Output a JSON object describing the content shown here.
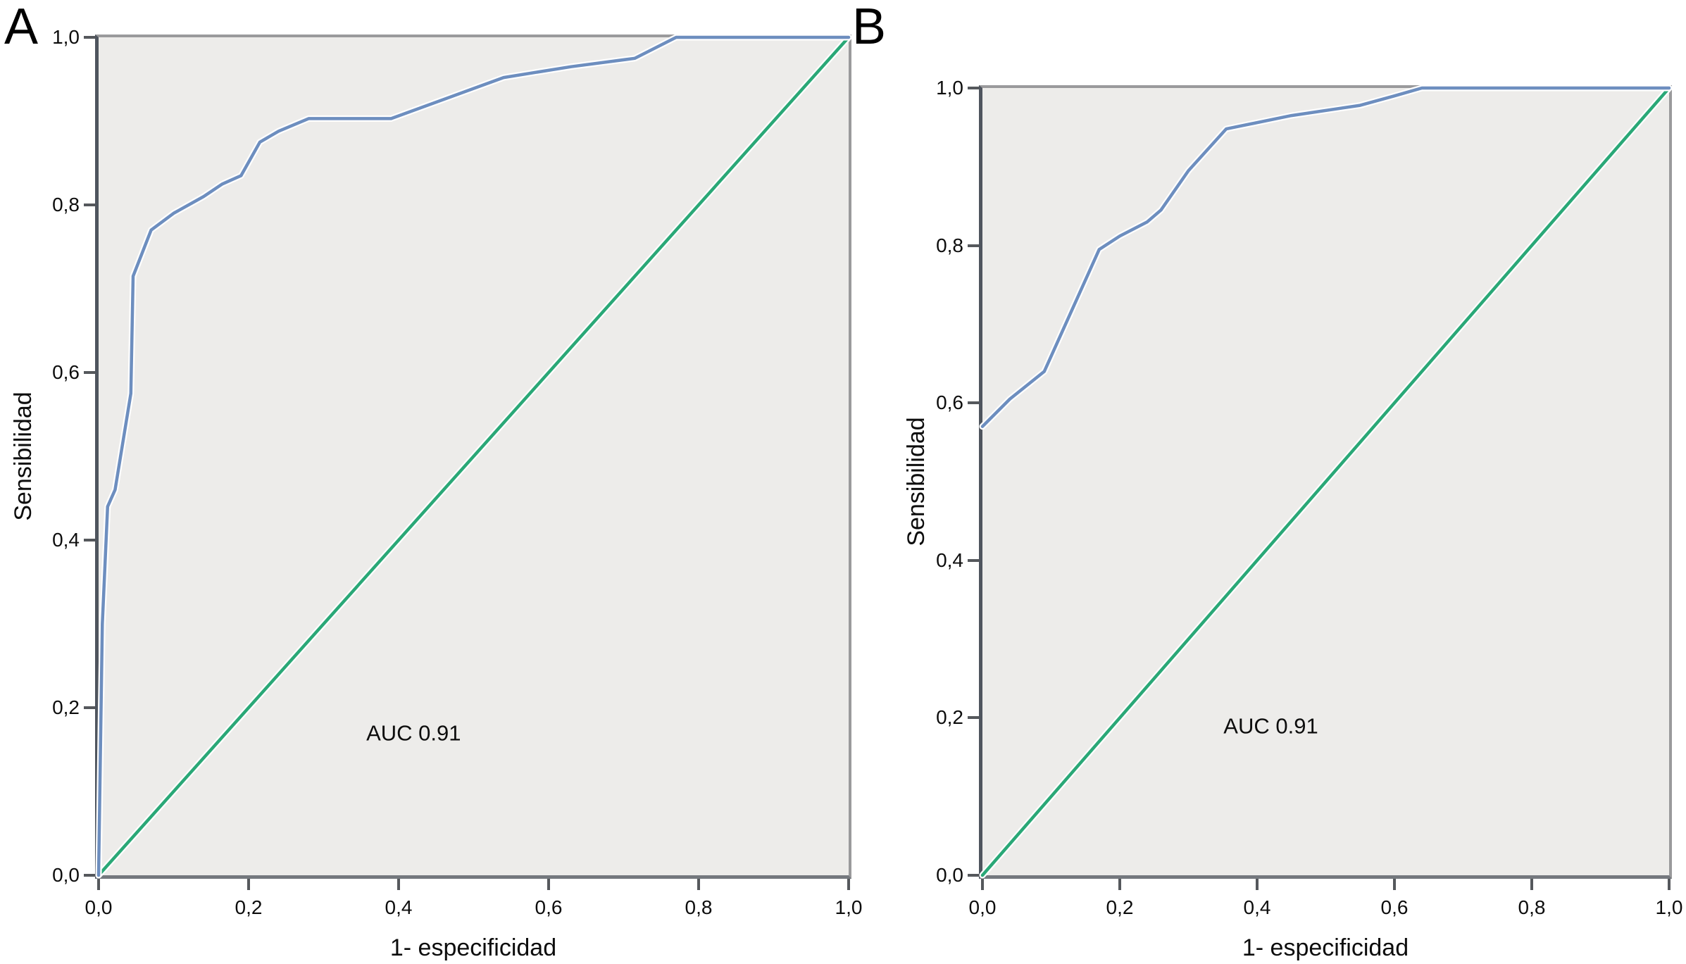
{
  "figure": {
    "background": "#ffffff",
    "panels": [
      {
        "id": "A",
        "label": "A",
        "x_axis_label": "1- especificidad",
        "y_axis_label": "Sensibilidad",
        "annotation": "AUC 0.91",
        "x_tick_labels": [
          "0,0",
          "0,2",
          "0,4",
          "0,6",
          "0,8",
          "1,0"
        ],
        "y_tick_labels": [
          "0,0",
          "0,2",
          "0,4",
          "0,6",
          "0,8",
          "1,0"
        ]
      },
      {
        "id": "B",
        "label": "B",
        "x_axis_label": "1- especificidad",
        "y_axis_label": "Sensibilidad",
        "annotation": "AUC 0.91",
        "x_tick_labels": [
          "0,0",
          "0,2",
          "0,4",
          "0,6",
          "0,8",
          "1,0"
        ],
        "y_tick_labels": [
          "0,0",
          "0,2",
          "0,4",
          "0,6",
          "0,8",
          "1,0"
        ]
      }
    ]
  },
  "colors": {
    "roc_curve": "#6d8ebf",
    "reference_line": "#2aa877",
    "curve_halo": "#ffffff",
    "plot_background": "#edecea",
    "axis_dark": "#4f555e",
    "axis_light": "#9a9a9c",
    "tick": "#55585c",
    "text": "#0d0d0d"
  },
  "chart_data": [
    {
      "type": "line",
      "title": "ROC curve panel A",
      "xlabel": "1- especificidad",
      "ylabel": "Sensibilidad",
      "xlim": [
        0,
        1
      ],
      "ylim": [
        0,
        1
      ],
      "grid": false,
      "legend": false,
      "annotations": [
        {
          "text": "AUC 0.91",
          "x": 0.42,
          "y": 0.17
        }
      ],
      "series": [
        {
          "name": "reference-diagonal",
          "color": "#2aa877",
          "points": [
            [
              0,
              0
            ],
            [
              1,
              1
            ]
          ]
        },
        {
          "name": "roc-curve",
          "color": "#6d8ebf",
          "points": [
            [
              0,
              0
            ],
            [
              0.005,
              0.3
            ],
            [
              0.012,
              0.44
            ],
            [
              0.022,
              0.46
            ],
            [
              0.043,
              0.575
            ],
            [
              0.046,
              0.715
            ],
            [
              0.07,
              0.77
            ],
            [
              0.1,
              0.79
            ],
            [
              0.14,
              0.81
            ],
            [
              0.165,
              0.825
            ],
            [
              0.19,
              0.835
            ],
            [
              0.215,
              0.875
            ],
            [
              0.24,
              0.888
            ],
            [
              0.28,
              0.903
            ],
            [
              0.39,
              0.903
            ],
            [
              0.54,
              0.952
            ],
            [
              0.63,
              0.965
            ],
            [
              0.715,
              0.975
            ],
            [
              0.77,
              1.0
            ],
            [
              1,
              1
            ]
          ]
        }
      ]
    },
    {
      "type": "line",
      "title": "ROC curve panel B",
      "xlabel": "1- especificidad",
      "ylabel": "Sensibilidad",
      "xlim": [
        0,
        1
      ],
      "ylim": [
        0,
        1
      ],
      "grid": false,
      "legend": false,
      "annotations": [
        {
          "text": "AUC 0.91",
          "x": 0.42,
          "y": 0.19
        }
      ],
      "series": [
        {
          "name": "reference-diagonal",
          "color": "#2aa877",
          "points": [
            [
              0,
              0
            ],
            [
              1,
              1
            ]
          ]
        },
        {
          "name": "roc-curve",
          "color": "#6d8ebf",
          "points": [
            [
              0,
              0.57
            ],
            [
              0.04,
              0.605
            ],
            [
              0.09,
              0.64
            ],
            [
              0.17,
              0.795
            ],
            [
              0.2,
              0.812
            ],
            [
              0.24,
              0.83
            ],
            [
              0.26,
              0.845
            ],
            [
              0.3,
              0.895
            ],
            [
              0.355,
              0.948
            ],
            [
              0.45,
              0.965
            ],
            [
              0.55,
              0.978
            ],
            [
              0.6,
              0.99
            ],
            [
              0.64,
              1.0
            ],
            [
              1,
              1
            ]
          ]
        }
      ]
    }
  ]
}
